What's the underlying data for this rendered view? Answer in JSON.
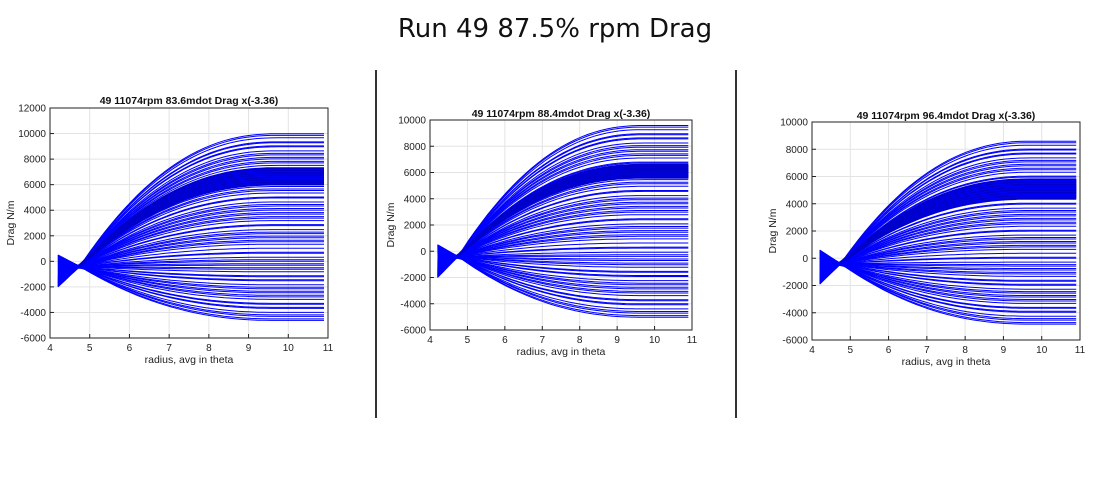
{
  "slide": {
    "title": "Run 49 87.5% rpm Drag"
  },
  "chart_data": [
    {
      "type": "line",
      "title": "49 11074rpm 83.6mdot Drag x(-3.36)",
      "xlabel": "radius, avg in theta",
      "ylabel": "Drag N/m",
      "xlim": [
        4,
        11
      ],
      "ylim": [
        -6000,
        12000
      ],
      "xticks": [
        4,
        5,
        6,
        7,
        8,
        9,
        10,
        11
      ],
      "yticks": [
        -6000,
        -4000,
        -2000,
        0,
        2000,
        4000,
        6000,
        8000,
        10000,
        12000
      ],
      "grid": true,
      "line_color": "#0000ff",
      "family": {
        "x_start": 4.2,
        "x_end": 10.9,
        "x_pinch": 4.75,
        "start_range": [
          -2000,
          500
        ],
        "end_range": [
          -4700,
          10100
        ],
        "dense_band": [
          6000,
          7300
        ],
        "count": 120
      }
    },
    {
      "type": "line",
      "title": "49 11074rpm 88.4mdot Drag x(-3.36)",
      "xlabel": "radius, avg in theta",
      "ylabel": "Drag N/m",
      "xlim": [
        4,
        11
      ],
      "ylim": [
        -6000,
        10000
      ],
      "xticks": [
        4,
        5,
        6,
        7,
        8,
        9,
        10,
        11
      ],
      "yticks": [
        -6000,
        -4000,
        -2000,
        0,
        2000,
        4000,
        6000,
        8000,
        10000
      ],
      "grid": true,
      "line_color": "#0000ff",
      "family": {
        "x_start": 4.2,
        "x_end": 10.9,
        "x_pinch": 4.75,
        "start_range": [
          -2000,
          500
        ],
        "end_range": [
          -5100,
          9700
        ],
        "dense_band": [
          5600,
          6600
        ],
        "count": 120
      }
    },
    {
      "type": "line",
      "title": "49 11074rpm 96.4mdot Drag x(-3.36)",
      "xlabel": "radius, avg in theta",
      "ylabel": "Drag N/m",
      "xlim": [
        4,
        11
      ],
      "ylim": [
        -6000,
        10000
      ],
      "xticks": [
        4,
        5,
        6,
        7,
        8,
        9,
        10,
        11
      ],
      "yticks": [
        -6000,
        -4000,
        -2000,
        0,
        2000,
        4000,
        6000,
        8000,
        10000
      ],
      "grid": true,
      "line_color": "#0000ff",
      "family": {
        "x_start": 4.2,
        "x_end": 10.9,
        "x_pinch": 4.75,
        "start_range": [
          -1900,
          600
        ],
        "end_range": [
          -4900,
          8700
        ],
        "dense_band": [
          4400,
          5800
        ],
        "count": 120
      }
    }
  ]
}
